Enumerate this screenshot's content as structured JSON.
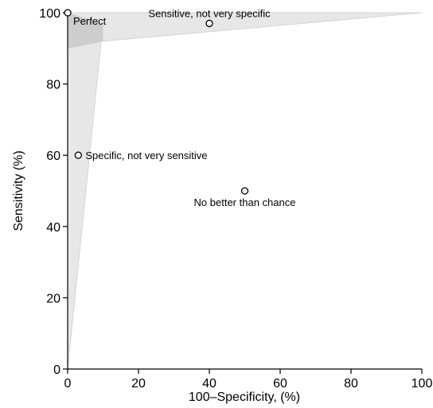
{
  "chart_data": {
    "type": "scatter",
    "title": "",
    "xlabel": "100–Specificity, (%)",
    "ylabel": "Sensitivity (%)",
    "xlim": [
      0,
      100
    ],
    "ylim": [
      0,
      100
    ],
    "x_ticks": [
      {
        "value": 0,
        "label": "0"
      },
      {
        "value": 20,
        "label": "20"
      },
      {
        "value": 40,
        "label": "40"
      },
      {
        "value": 60,
        "label": "60"
      },
      {
        "value": 80,
        "label": "80"
      },
      {
        "value": 100,
        "label": "100"
      }
    ],
    "y_ticks": [
      {
        "value": 0,
        "label": "0"
      },
      {
        "value": 20,
        "label": "20"
      },
      {
        "value": 40,
        "label": "40"
      },
      {
        "value": 60,
        "label": "60"
      },
      {
        "value": 80,
        "label": "80"
      },
      {
        "value": 100,
        "label": "100"
      }
    ],
    "grid": false,
    "legend": "none",
    "points": [
      {
        "x": 0,
        "y": 100,
        "label": "Perfect",
        "label_position": "below-right"
      },
      {
        "x": 40,
        "y": 97,
        "label": "Sensitive, not very specific",
        "label_position": "above"
      },
      {
        "x": 3,
        "y": 60,
        "label": "Specific, not very sensitive",
        "label_position": "right"
      },
      {
        "x": 50,
        "y": 50,
        "label": "No better than chance",
        "label_position": "below"
      }
    ],
    "shaded_regions": [
      {
        "shade": "light",
        "polygon": [
          [
            0,
            0
          ],
          [
            0,
            100
          ],
          [
            100,
            100
          ],
          [
            10,
            97
          ]
        ]
      },
      {
        "shade": "light",
        "polygon": [
          [
            0,
            90
          ],
          [
            0,
            100
          ],
          [
            100,
            100
          ],
          [
            10,
            92
          ]
        ]
      },
      {
        "shade": "dark",
        "polygon": [
          [
            0,
            90
          ],
          [
            0,
            100
          ],
          [
            10,
            97
          ],
          [
            10,
            92
          ]
        ]
      }
    ],
    "colors": {
      "region_light": "#e7e7e7",
      "region_dark": "#cdcdcd",
      "axis": "#000000",
      "marker_fill": "#ffffff"
    }
  }
}
